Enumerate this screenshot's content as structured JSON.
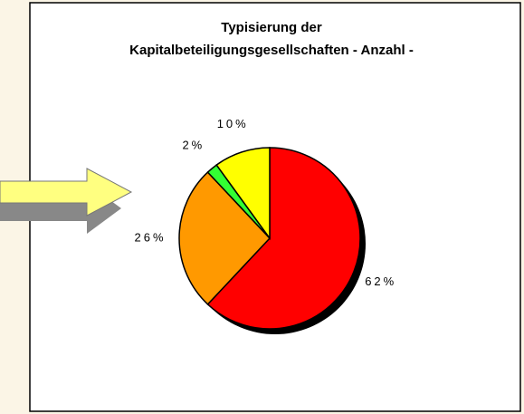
{
  "chart_data": {
    "type": "pie",
    "title": [
      "Typisierung der",
      "Kapitalbeteiligungsgesellschaften - Anzahl -"
    ],
    "values": [
      62,
      26,
      2,
      10
    ],
    "value_labels": [
      "62%",
      "26%",
      "2%",
      "10%"
    ],
    "colors": [
      "#ff0000",
      "#ff9900",
      "#33ff33",
      "#ffff00"
    ]
  }
}
